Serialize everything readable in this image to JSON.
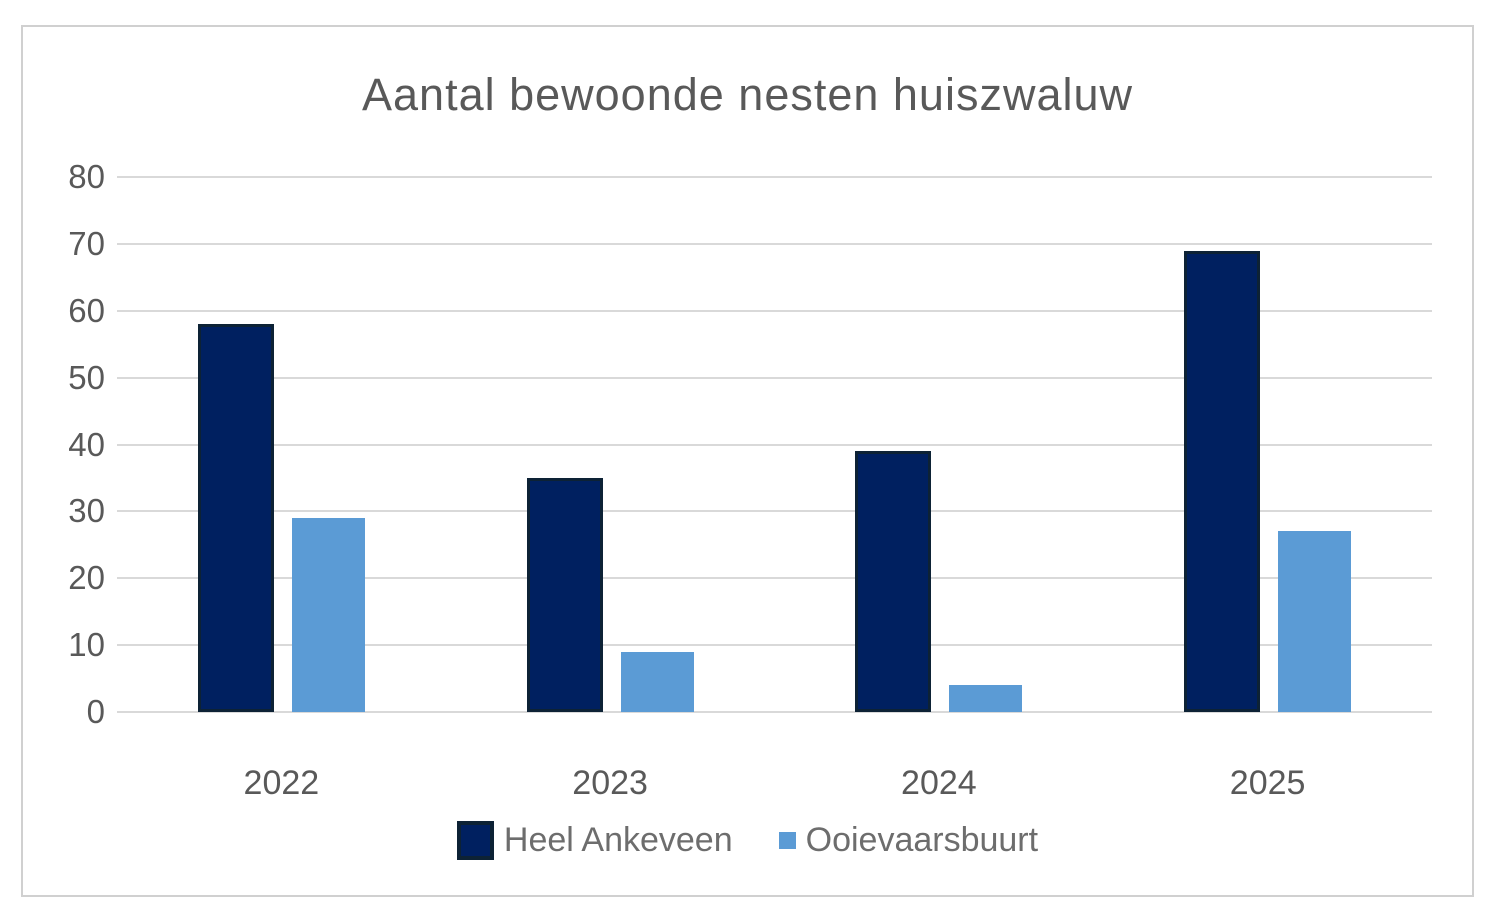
{
  "chart_data": {
    "type": "bar",
    "title": "Aantal bewoonde nesten huiszwaluw",
    "categories": [
      "2022",
      "2023",
      "2024",
      "2025"
    ],
    "series": [
      {
        "name": "Heel Ankeveen",
        "color": "#002060",
        "border_color": "#0d2235",
        "values": [
          58,
          35,
          39,
          69
        ]
      },
      {
        "name": "Ooievaarsbuurt",
        "color": "#5b9bd5",
        "border_color": null,
        "values": [
          29,
          9,
          4,
          27
        ]
      }
    ],
    "xlabel": "",
    "ylabel": "",
    "ylim": [
      0,
      80
    ],
    "yticks": [
      "0",
      "10",
      "20",
      "30",
      "40",
      "50",
      "60",
      "70",
      "80"
    ],
    "grid": "horizontal",
    "legend_position": "bottom"
  },
  "colors": {
    "gridline": "#d9d9d9",
    "frame_border": "#d0d0d0",
    "text": "#595959",
    "background": "#ffffff"
  }
}
